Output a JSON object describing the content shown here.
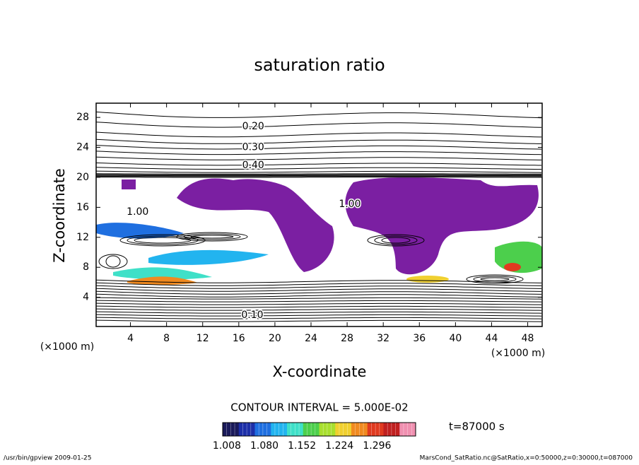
{
  "chart_data": {
    "type": "contour",
    "title": "saturation ratio",
    "x_label": "X-coordinate",
    "y_label": "Z-coordinate",
    "x_unit": "(×1000 m)",
    "y_unit": "(×1000 m)",
    "xlim": [
      0.2,
      49.6
    ],
    "ylim": [
      0.1,
      29.9
    ],
    "xticks": [
      4,
      8,
      12,
      16,
      20,
      24,
      28,
      32,
      36,
      40,
      44,
      48
    ],
    "yticks": [
      4,
      8,
      12,
      16,
      20,
      24,
      28
    ],
    "contour_labels": [
      {
        "label": "0.20",
        "x": 17.6,
        "y": 26.8
      },
      {
        "label": "0.30",
        "x": 17.6,
        "y": 24.0
      },
      {
        "label": "0.40",
        "x": 17.6,
        "y": 21.6
      },
      {
        "label": "0.10",
        "x": 17.5,
        "y": 1.6
      },
      {
        "label": "1.00",
        "x": 4.8,
        "y": 15.4
      },
      {
        "label": "1.00",
        "x": 28.3,
        "y": 16.4
      }
    ],
    "contour_interval": "CONTOUR INTERVAL = 5.000E-02",
    "colorbar": {
      "clim": [
        1.0,
        1.37
      ],
      "colors": [
        "#1a1a5a",
        "#1d2fa8",
        "#1f6fe0",
        "#22b4ef",
        "#3fe0c8",
        "#4ccf4c",
        "#a8df2f",
        "#f0d030",
        "#f08a20",
        "#e03a20",
        "#c02020",
        "#f090b0"
      ],
      "ticks": [
        1.008,
        {
          "value": 1.08,
          "label": "1.080"
        },
        1.152,
        1.224,
        1.296
      ]
    },
    "time_label": "t=87000 s",
    "footer_left": "/usr/bin/gpview   2009-01-25",
    "footer_right": "MarsCond_SatRatio.nc@SatRatio,x=0:50000,z=0:30000,t=087000"
  }
}
